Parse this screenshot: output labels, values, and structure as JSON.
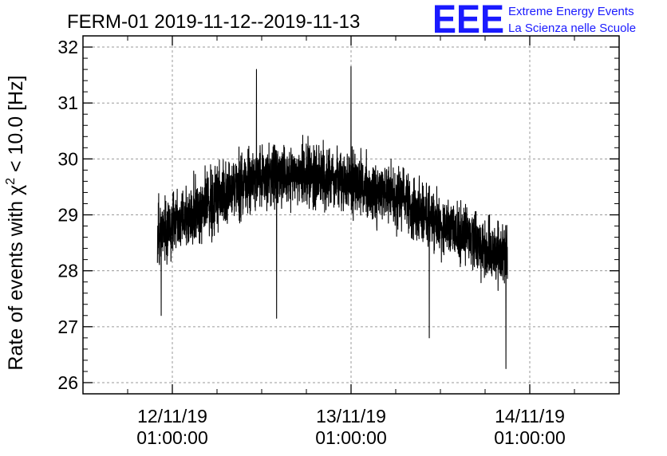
{
  "title": "FERM-01 2019-11-12--2019-11-13",
  "logo": {
    "mark": "EEE",
    "line1": "Extreme Energy Events",
    "line2": "La Scienza nelle Scuole",
    "color": "#1a1aff"
  },
  "chart_data": {
    "type": "line",
    "title": "FERM-01 2019-11-12--2019-11-13",
    "xlabel": "",
    "ylabel_parts": {
      "prefix": "Rate of events with ",
      "symbol": "χ",
      "superscript": "2",
      "suffix": " < 10.0 [Hz]"
    },
    "ylim": [
      25.8,
      32.2
    ],
    "y_ticks": [
      26,
      27,
      28,
      29,
      30,
      31,
      32
    ],
    "y_tick_labels": [
      "26",
      "27",
      "28",
      "29",
      "30",
      "31",
      "32"
    ],
    "x_range_hours": [
      -12,
      60
    ],
    "x_ticks": [
      {
        "date": "12/11/19",
        "time": "01:00:00",
        "hour": 0
      },
      {
        "date": "13/11/19",
        "time": "01:00:00",
        "hour": 24
      },
      {
        "date": "14/11/19",
        "time": "01:00:00",
        "hour": 48
      }
    ],
    "x_minor_tick_hours": [
      -6,
      6,
      12,
      18,
      30,
      36,
      42,
      54
    ],
    "grid": true,
    "line_color": "#000000",
    "series": [
      {
        "x_start_hour": -2,
        "x_end_hour": 45,
        "trend": [
          [
            -2,
            28.6
          ],
          [
            1,
            28.9
          ],
          [
            6,
            29.3
          ],
          [
            10,
            29.6
          ],
          [
            14,
            29.75
          ],
          [
            18,
            29.7
          ],
          [
            22,
            29.6
          ],
          [
            26,
            29.5
          ],
          [
            30,
            29.3
          ],
          [
            34,
            29.0
          ],
          [
            38,
            28.7
          ],
          [
            42,
            28.4
          ],
          [
            45,
            28.3
          ]
        ],
        "noise_amplitude": 0.45,
        "sample_count": 2800,
        "extremes": [
          {
            "hour": 11.3,
            "value": 31.6
          },
          {
            "hour": 24.0,
            "value": 31.65
          },
          {
            "hour": 14.0,
            "value": 27.15
          },
          {
            "hour": 34.5,
            "value": 26.8
          },
          {
            "hour": 44.8,
            "value": 26.25
          },
          {
            "hour": -1.5,
            "value": 27.2
          }
        ]
      }
    ]
  }
}
